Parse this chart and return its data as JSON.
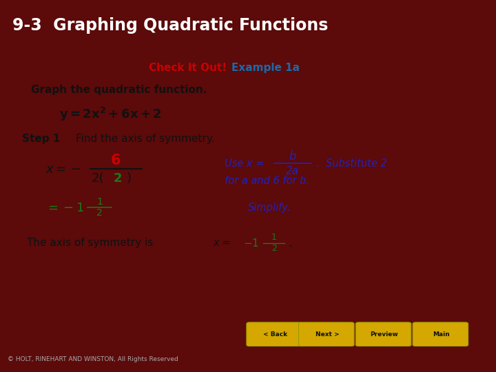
{
  "title": "9-3  Graphing Quadratic Functions",
  "title_bg": "#5c0a0a",
  "title_color": "#ffffff",
  "content_bg": "#f0f0f0",
  "bottom_bar_bg": "#cc1111",
  "copyright_bg": "#111111",
  "copyright_text": "© HOLT, RINEHART AND WINSTON, All Rights Reserved",
  "check_it_out_color": "#cc0000",
  "example_color": "#1a6aaa",
  "black_color": "#111111",
  "green_color": "#1a7a1a",
  "blue_italic_color": "#2222bb",
  "button_color": "#d4a800",
  "buttons": [
    "< Back",
    "Next >",
    "Preview",
    "Main"
  ]
}
